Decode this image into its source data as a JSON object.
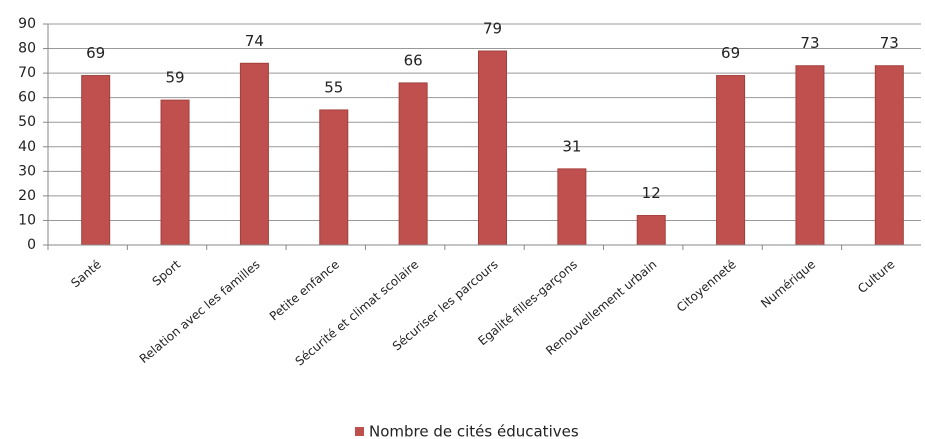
{
  "chart_data": {
    "type": "bar",
    "categories": [
      "Santé",
      "Sport",
      "Relation avec les familles",
      "Petite enfance",
      "Sécurité et climat scolaire",
      "Sécuriser les parcours",
      "Egalité filles-garçons",
      "Renouvellement urbain",
      "Citoyenneté",
      "Numérique",
      "Culture"
    ],
    "series": [
      {
        "name": "Nombre de cités éducatives",
        "color": "#c0504d",
        "values": [
          69,
          59,
          74,
          55,
          66,
          79,
          31,
          12,
          69,
          73,
          73
        ]
      }
    ],
    "ylim": [
      0,
      90
    ],
    "yticks": [
      0,
      10,
      20,
      30,
      40,
      50,
      60,
      70,
      80,
      90
    ],
    "grid": true,
    "data_labels": true,
    "legend": "bottom"
  }
}
